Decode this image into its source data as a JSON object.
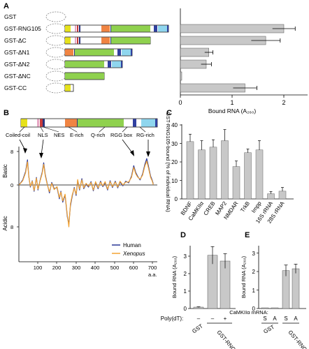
{
  "panel_letters": {
    "a": "A",
    "b": "B",
    "c": "C",
    "d": "D",
    "e": "E"
  },
  "colors": {
    "yellow": "#e6e21c",
    "pink": "#e7a6c4",
    "red": "#c83a3a",
    "blue_dark": "#29347e",
    "orange": "#f08442",
    "green": "#8fd14e",
    "navy": "#3040a0",
    "cyan": "#8fd6ee",
    "bar": "#c8c8c8",
    "human": "#283596",
    "xenopus": "#f2a232"
  },
  "panelA": {
    "constructs": [
      "GST",
      "GST-RNG105",
      "GST-ΔC",
      "GST-ΔN1",
      "GST-ΔN2",
      "GST-ΔNC",
      "GST-CC"
    ],
    "xlabel": "Bound RNA (A₂₆₀)",
    "xticks": [
      "0",
      "1",
      "2"
    ]
  },
  "panelB": {
    "domain_labels": [
      "Coiled-coil",
      "NLS",
      "NES",
      "E-rich",
      "Q-rich",
      "RGG box",
      "RG-rich"
    ],
    "y_top": "Basic",
    "y_bottom": "Acidic",
    "y_ticks": [
      "8",
      "0",
      "8"
    ],
    "x_ticks": [
      "100",
      "200",
      "300",
      "400",
      "500",
      "600",
      "700"
    ],
    "x_unit": "a.a.",
    "legend": [
      {
        "label": "Human"
      },
      {
        "label": "Xenopus"
      }
    ]
  },
  "panelC": {
    "ylabel": "GST-RNG105-bound (% of individual RNA)",
    "yticks": [
      "0",
      "10",
      "20",
      "30",
      "40"
    ]
  },
  "panelD": {
    "ylabel": "Bound RNA (A₂₆₀)",
    "yticks": [
      "0",
      "1",
      "2",
      "3"
    ],
    "row_label": "Poly(dT):",
    "signs": [
      "–",
      "–",
      "+"
    ],
    "groups": [
      "GST",
      "GST-RNG105"
    ]
  },
  "panelE": {
    "ylabel": "Bound RNA (A₂₆₀)",
    "yticks": [
      "0",
      "1",
      "2",
      "3"
    ],
    "row_label": "CaMKIIα mRNA:",
    "strands": [
      "S",
      "A",
      "S",
      "A"
    ],
    "groups": [
      "GST",
      "GST-RNG105"
    ]
  },
  "chart_data": [
    {
      "panel": "A",
      "type": "bar",
      "orientation": "horizontal",
      "categories": [
        "GST",
        "GST-RNG105",
        "GST-ΔC",
        "GST-ΔN1",
        "GST-ΔN2",
        "GST-ΔNC",
        "GST-CC"
      ],
      "values": [
        0,
        2.0,
        1.65,
        0.55,
        0.5,
        0.02,
        1.25
      ],
      "errors": [
        0,
        0.22,
        0.28,
        0.08,
        0.1,
        0,
        0.23
      ],
      "xlabel": "Bound RNA (A260)",
      "xlim": [
        0,
        2.5
      ]
    },
    {
      "panel": "B",
      "type": "line",
      "series": [
        {
          "name": "Human",
          "points": [
            [
              1,
              0
            ],
            [
              20,
              1.2
            ],
            [
              35,
              3.2
            ],
            [
              45,
              6
            ],
            [
              52,
              2.1
            ],
            [
              60,
              -0.5
            ],
            [
              70,
              1
            ],
            [
              80,
              -1.5
            ],
            [
              92,
              1.8
            ],
            [
              100,
              -1.2
            ],
            [
              112,
              1.3
            ],
            [
              122,
              3
            ],
            [
              130,
              5.3
            ],
            [
              138,
              2.5
            ],
            [
              148,
              0.4
            ],
            [
              160,
              -1.9
            ],
            [
              172,
              0.6
            ],
            [
              185,
              -0.9
            ],
            [
              200,
              -0.6
            ],
            [
              212,
              -3.3
            ],
            [
              220,
              -1.5
            ],
            [
              230,
              -4.1
            ],
            [
              242,
              -2.4
            ],
            [
              254,
              -7.6
            ],
            [
              262,
              -9.3
            ],
            [
              270,
              -5
            ],
            [
              280,
              -2.6
            ],
            [
              290,
              -0.6
            ],
            [
              300,
              -2.5
            ],
            [
              308,
              1.1
            ],
            [
              318,
              -1.2
            ],
            [
              330,
              1.5
            ],
            [
              340,
              -0.9
            ],
            [
              352,
              0.2
            ],
            [
              365,
              -0.5
            ],
            [
              378,
              0.8
            ],
            [
              390,
              -1.4
            ],
            [
              402,
              0.6
            ],
            [
              415,
              -0.9
            ],
            [
              428,
              0.9
            ],
            [
              440,
              -0.4
            ],
            [
              452,
              0.6
            ],
            [
              465,
              -1.2
            ],
            [
              478,
              1
            ],
            [
              490,
              -0.6
            ],
            [
              505,
              0.9
            ],
            [
              518,
              -0.7
            ],
            [
              530,
              0.7
            ],
            [
              545,
              -0.2
            ],
            [
              560,
              0.9
            ],
            [
              575,
              0.5
            ],
            [
              590,
              2.1
            ],
            [
              602,
              4.6
            ],
            [
              612,
              3
            ],
            [
              622,
              2.1
            ],
            [
              635,
              1.2
            ],
            [
              648,
              2.6
            ],
            [
              660,
              4.9
            ],
            [
              670,
              6.3
            ],
            [
              680,
              4.3
            ],
            [
              690,
              2.1
            ],
            [
              698,
              1.2
            ],
            [
              704,
              0.3
            ]
          ]
        },
        {
          "name": "Xenopus",
          "points": [
            [
              1,
              0
            ],
            [
              20,
              1
            ],
            [
              35,
              2.9
            ],
            [
              45,
              5.5
            ],
            [
              52,
              1.9
            ],
            [
              60,
              -0.3
            ],
            [
              70,
              0.9
            ],
            [
              80,
              -1.3
            ],
            [
              92,
              1.6
            ],
            [
              100,
              -1
            ],
            [
              112,
              1.1
            ],
            [
              122,
              2.7
            ],
            [
              130,
              4.9
            ],
            [
              138,
              2.2
            ],
            [
              148,
              0.2
            ],
            [
              160,
              -1.6
            ],
            [
              172,
              0.4
            ],
            [
              185,
              -1.1
            ],
            [
              200,
              -0.4
            ],
            [
              212,
              -3
            ],
            [
              220,
              -1.7
            ],
            [
              230,
              -3.8
            ],
            [
              242,
              -2.2
            ],
            [
              254,
              -7.2
            ],
            [
              262,
              -10
            ],
            [
              270,
              -4.6
            ],
            [
              280,
              -2.3
            ],
            [
              290,
              -0.8
            ],
            [
              300,
              -2.2
            ],
            [
              308,
              1.3
            ],
            [
              318,
              -1
            ],
            [
              330,
              1.2
            ],
            [
              340,
              -0.7
            ],
            [
              352,
              0.4
            ],
            [
              365,
              -0.3
            ],
            [
              378,
              0.6
            ],
            [
              390,
              -1.2
            ],
            [
              402,
              0.8
            ],
            [
              415,
              -0.7
            ],
            [
              428,
              0.7
            ],
            [
              440,
              -0.2
            ],
            [
              452,
              0.8
            ],
            [
              465,
              -1
            ],
            [
              478,
              0.8
            ],
            [
              490,
              -0.4
            ],
            [
              505,
              0.7
            ],
            [
              518,
              -0.5
            ],
            [
              530,
              0.9
            ],
            [
              545,
              0
            ],
            [
              560,
              0.7
            ],
            [
              575,
              0.7
            ],
            [
              590,
              1.8
            ],
            [
              602,
              4.2
            ],
            [
              612,
              2.7
            ],
            [
              622,
              1.9
            ],
            [
              635,
              1.4
            ],
            [
              648,
              2.3
            ],
            [
              660,
              4.5
            ],
            [
              670,
              5.7
            ],
            [
              680,
              3.9
            ],
            [
              690,
              1.8
            ],
            [
              698,
              1
            ],
            [
              704,
              0.1
            ]
          ]
        }
      ],
      "xlim": [
        0,
        720
      ],
      "ylim": [
        -10,
        8
      ],
      "xlabel": "a.a."
    },
    {
      "panel": "C",
      "type": "bar",
      "categories": [
        "BDNF",
        "CaMKIIα",
        "CREB",
        "MAP2",
        "NMDAR",
        "TrkB",
        "Impp",
        "16S rRNA",
        "28S rRNA"
      ],
      "values": [
        31,
        26.5,
        28,
        31.5,
        17.5,
        25,
        26.5,
        2.8,
        4.2
      ],
      "errors": [
        4,
        5,
        4,
        6,
        3,
        2,
        5,
        1.2,
        2
      ],
      "ylabel": "GST-RNG105-bound (% of individual RNA)",
      "ylim": [
        0,
        40
      ]
    },
    {
      "panel": "D",
      "type": "bar",
      "categories": [
        "GST –",
        "GST-RNG105 –",
        "GST-RNG105 +"
      ],
      "values": [
        0.08,
        3.05,
        2.72
      ],
      "errors": [
        0.02,
        0.5,
        0.42
      ],
      "ylabel": "Bound RNA (A260)",
      "ylim": [
        0,
        3.6
      ]
    },
    {
      "panel": "E",
      "type": "bar",
      "categories": [
        "GST S",
        "GST A",
        "GST-RNG105 S",
        "GST-RNG105 A"
      ],
      "values": [
        0.01,
        0.01,
        2.05,
        2.15
      ],
      "errors": [
        0,
        0,
        0.3,
        0.25
      ],
      "ylabel": "Bound RNA (A260)",
      "ylim": [
        0,
        3.4
      ]
    }
  ]
}
